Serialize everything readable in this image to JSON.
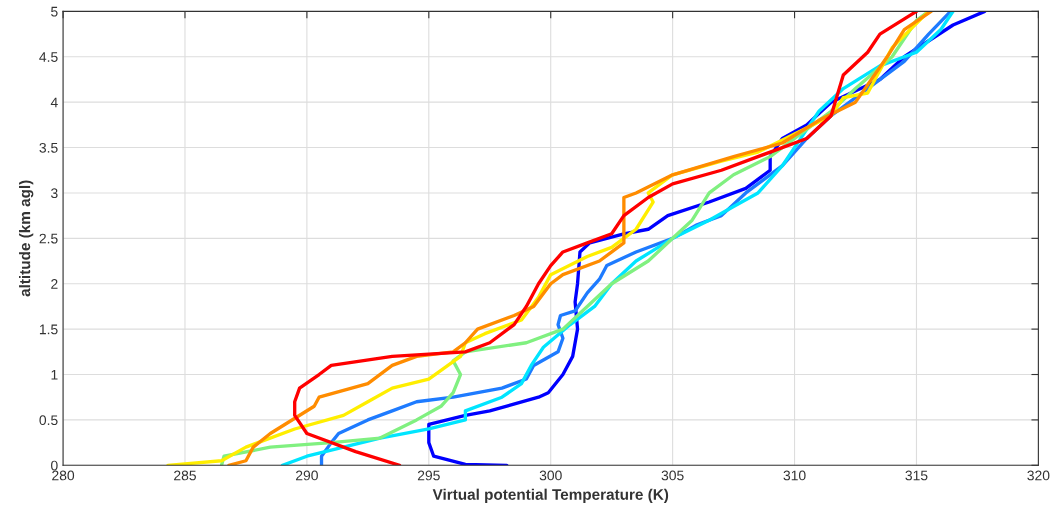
{
  "chart_data": {
    "type": "line",
    "xlabel": "Virtual potential Temperature (K)",
    "ylabel": "altitude (km agl)",
    "xlim": [
      280,
      320
    ],
    "ylim": [
      0,
      5
    ],
    "xticks": [
      280,
      285,
      290,
      295,
      300,
      305,
      310,
      315,
      320
    ],
    "yticks": [
      0,
      0.5,
      1,
      1.5,
      2,
      2.5,
      3,
      3.5,
      4,
      4.5,
      5
    ],
    "grid": true,
    "legend": false,
    "marker": "none",
    "line_style": "solid",
    "series": [
      {
        "color": "#0000ff",
        "x": [
          298.2,
          296.5,
          295.2,
          295.0,
          295.0,
          296.5,
          297.5,
          299.5,
          299.9,
          300.5,
          300.9,
          301.1,
          301.0,
          301.1,
          301.2,
          301.6,
          303.0,
          304.0,
          304.8,
          306.5,
          308.0,
          309.0,
          309.0,
          309.5,
          310.5,
          311.5,
          313.5,
          314.5,
          316.5,
          317.8
        ],
        "values": [
          0,
          0.01,
          0.1,
          0.25,
          0.45,
          0.55,
          0.6,
          0.75,
          0.8,
          1.0,
          1.2,
          1.5,
          1.8,
          2.0,
          2.35,
          2.45,
          2.55,
          2.6,
          2.75,
          2.9,
          3.05,
          3.25,
          3.4,
          3.6,
          3.75,
          4.0,
          4.25,
          4.5,
          4.85,
          5.0
        ]
      },
      {
        "color": "#1e7bff",
        "x": [
          290.6,
          290.6,
          291.0,
          291.3,
          292.5,
          293.5,
          294.5,
          296.0,
          298.0,
          299.0,
          299.3,
          300.3,
          300.5,
          300.3,
          300.4,
          301.0,
          301.5,
          302.0,
          302.3,
          303.5,
          305.0,
          306.0,
          307.0,
          308.0,
          309.5,
          310.5,
          311.5,
          313.0,
          314.5,
          315.5,
          316.4
        ],
        "values": [
          0,
          0.1,
          0.25,
          0.35,
          0.5,
          0.6,
          0.7,
          0.75,
          0.85,
          0.95,
          1.1,
          1.25,
          1.4,
          1.55,
          1.65,
          1.7,
          1.9,
          2.05,
          2.2,
          2.35,
          2.5,
          2.65,
          2.75,
          3.0,
          3.3,
          3.6,
          3.85,
          4.15,
          4.45,
          4.75,
          5.0
        ]
      },
      {
        "color": "#00e5ff",
        "x": [
          289.0,
          290.0,
          291.5,
          293.0,
          295.0,
          296.5,
          296.5,
          298.0,
          298.8,
          299.2,
          299.7,
          300.8,
          301.8,
          302.5,
          303.5,
          305.0,
          306.5,
          307.5,
          308.5,
          309.5,
          310.5,
          311.0,
          312.0,
          313.5,
          315.0,
          316.0,
          316.5
        ],
        "values": [
          0,
          0.1,
          0.2,
          0.3,
          0.4,
          0.5,
          0.6,
          0.75,
          0.9,
          1.1,
          1.3,
          1.55,
          1.75,
          2.0,
          2.25,
          2.5,
          2.7,
          2.85,
          3.0,
          3.3,
          3.7,
          3.9,
          4.15,
          4.4,
          4.55,
          4.8,
          5.0
        ]
      },
      {
        "color": "#80f080",
        "x": [
          286.5,
          286.6,
          288.5,
          291.0,
          293.0,
          294.5,
          295.5,
          296.0,
          296.3,
          296.0,
          296.5,
          299.0,
          300.5,
          301.3,
          302.5,
          304.0,
          305.0,
          305.8,
          306.5,
          307.5,
          309.0,
          311.5,
          312.5,
          314.0,
          315.0,
          315.5
        ],
        "values": [
          0,
          0.1,
          0.2,
          0.25,
          0.3,
          0.5,
          0.65,
          0.8,
          1.0,
          1.15,
          1.25,
          1.35,
          1.5,
          1.7,
          2.0,
          2.25,
          2.5,
          2.7,
          3.0,
          3.2,
          3.4,
          3.9,
          4.15,
          4.5,
          4.9,
          5.0
        ]
      },
      {
        "color": "#ffee00",
        "x": [
          284.3,
          286.5,
          287.5,
          289.5,
          291.5,
          292.5,
          293.5,
          295.0,
          296.3,
          296.5,
          297.3,
          298.8,
          299.5,
          300.0,
          301.5,
          302.5,
          303.5,
          304.2,
          304.0,
          305.0,
          307.0,
          308.5,
          310.0,
          311.5,
          312.0,
          313.0,
          314.0,
          315.5
        ],
        "values": [
          0,
          0.05,
          0.2,
          0.4,
          0.55,
          0.7,
          0.85,
          0.95,
          1.2,
          1.35,
          1.45,
          1.6,
          1.85,
          2.1,
          2.3,
          2.4,
          2.6,
          2.9,
          3.0,
          3.2,
          3.35,
          3.45,
          3.65,
          3.85,
          4.05,
          4.1,
          4.6,
          5.0
        ]
      },
      {
        "color": "#ff8c00",
        "x": [
          286.8,
          287.5,
          287.8,
          288.5,
          290.3,
          290.5,
          292.5,
          293.5,
          294.5,
          296.0,
          296.5,
          297.0,
          298.5,
          299.3,
          300.0,
          300.5,
          302.0,
          303.0,
          303.0,
          303.5,
          305.0,
          307.5,
          309.5,
          311.0,
          312.5,
          313.8,
          314.5,
          315.6
        ],
        "values": [
          0,
          0.05,
          0.2,
          0.35,
          0.65,
          0.75,
          0.9,
          1.1,
          1.2,
          1.25,
          1.35,
          1.5,
          1.65,
          1.75,
          2.0,
          2.1,
          2.25,
          2.45,
          2.95,
          3.0,
          3.2,
          3.4,
          3.55,
          3.8,
          4.0,
          4.5,
          4.8,
          5.0
        ]
      },
      {
        "color": "#ff0000",
        "x": [
          293.8,
          292.0,
          290.0,
          289.5,
          289.5,
          289.7,
          290.5,
          291.0,
          293.5,
          296.5,
          297.5,
          298.5,
          299.0,
          299.5,
          300.0,
          300.5,
          301.5,
          302.5,
          303.0,
          304.0,
          305.0,
          307.0,
          309.0,
          310.5,
          311.5,
          312.0,
          313.0,
          313.5,
          315.0
        ],
        "values": [
          0,
          0.15,
          0.35,
          0.55,
          0.7,
          0.85,
          1.0,
          1.1,
          1.2,
          1.25,
          1.35,
          1.55,
          1.75,
          2.0,
          2.2,
          2.35,
          2.45,
          2.55,
          2.75,
          2.95,
          3.1,
          3.25,
          3.45,
          3.6,
          3.85,
          4.3,
          4.55,
          4.75,
          5.0
        ]
      }
    ]
  }
}
